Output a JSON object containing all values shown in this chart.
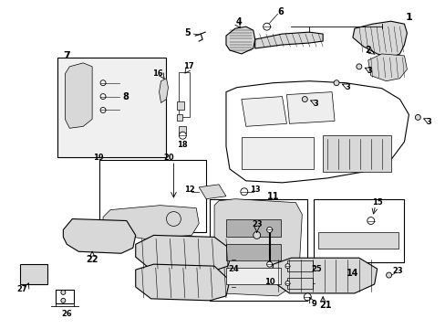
{
  "bg_color": "#ffffff",
  "line_color": "#000000",
  "gray_fill": "#d8d8d8",
  "light_fill": "#eeeeee",
  "figsize": [
    4.89,
    3.6
  ],
  "dpi": 100
}
